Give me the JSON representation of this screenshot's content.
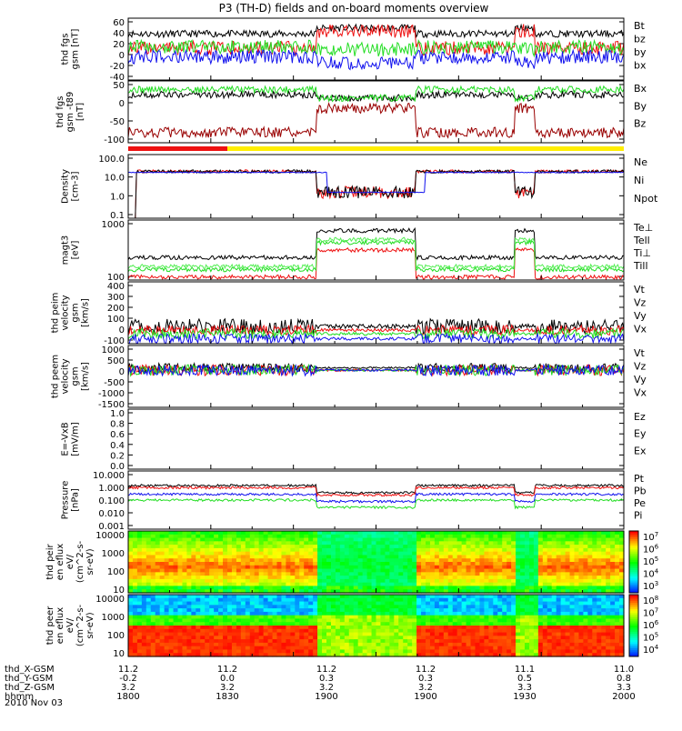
{
  "title": "P3 (TH-D) fields and on-board moments overview",
  "date_label": "2010 Nov 03",
  "bars": {
    "red_fraction": 0.2
  },
  "colors": {
    "black": "#000000",
    "red": "#ee1111",
    "green": "#22dd22",
    "blue": "#1111ee",
    "darkred": "#990000",
    "lightgreen": "#55ee55",
    "yellow": "#ffee00"
  },
  "colorbar_ticks": [
    {
      "label": "10",
      "exp": "7"
    },
    {
      "label": "10",
      "exp": "6"
    },
    {
      "label": "10",
      "exp": "5"
    },
    {
      "label": "10",
      "exp": "4"
    },
    {
      "label": "10",
      "exp": "3"
    }
  ],
  "colorbar2_ticks": [
    {
      "label": "10",
      "exp": "8"
    },
    {
      "label": "10",
      "exp": "7"
    },
    {
      "label": "10",
      "exp": "6"
    },
    {
      "label": "10",
      "exp": "5"
    },
    {
      "label": "10",
      "exp": "4"
    }
  ],
  "x_axis": {
    "rows": [
      {
        "name": "thd_X-GSM",
        "values": [
          "11.2",
          "11.2",
          "11.2",
          "11.2",
          "11.1",
          "11.0"
        ]
      },
      {
        "name": "thd_Y-GSM",
        "values": [
          "-0.2",
          "0.0",
          "0.3",
          "0.3",
          "0.5",
          "0.8"
        ]
      },
      {
        "name": "thd_Z-GSM",
        "values": [
          "3.2",
          "3.2",
          "3.2",
          "3.2",
          "3.3",
          "3.3"
        ]
      },
      {
        "name": "hhmm",
        "values": [
          "1800",
          "1830",
          "1900",
          "1900",
          "1930",
          "2000"
        ]
      }
    ]
  },
  "chart_data": [
    {
      "type": "line",
      "ylabel": "thd fgs gsm [nT]",
      "yticks": [
        "60",
        "40",
        "20",
        "0",
        "-20",
        "-40"
      ],
      "ylim": [
        -45,
        62
      ],
      "legend": [
        {
          "name": "Bt",
          "color": "#000000"
        },
        {
          "name": "bz",
          "color": "#ee1111"
        },
        {
          "name": "by",
          "color": "#22dd22"
        },
        {
          "name": "bx",
          "color": "#1111ee"
        }
      ]
    },
    {
      "type": "line",
      "ylabel": "thd fgs gsm -t89 [nT]",
      "yticks": [
        "50",
        "0",
        "-50",
        "-100"
      ],
      "ylim": [
        -120,
        60
      ],
      "legend": [
        {
          "name": "Bx",
          "color": "#000000"
        },
        {
          "name": "By",
          "color": "#22dd22"
        },
        {
          "name": "Bz",
          "color": "#990000"
        }
      ]
    },
    {
      "type": "line",
      "ylabel": "Density [cm-3]",
      "yticks": [
        "100.0",
        "10.0",
        "1.0",
        "0.1"
      ],
      "log": true,
      "legend": [
        {
          "name": "Ne",
          "color": "#ee1111"
        },
        {
          "name": "Ni",
          "color": "#000000"
        },
        {
          "name": "Npot",
          "color": "#1111ee"
        }
      ]
    },
    {
      "type": "line",
      "ylabel": "magt3 [eV]",
      "yticks": [
        "1000",
        "100"
      ],
      "log": true,
      "legend": [
        {
          "name": "Te⊥",
          "color": "#ee1111"
        },
        {
          "name": "Tell",
          "color": "#000000"
        },
        {
          "name": "Ti⊥",
          "color": "#22dd22"
        },
        {
          "name": "Till",
          "color": "#55ee55"
        }
      ]
    },
    {
      "type": "line",
      "ylabel": "thd peim velocity gsm [km/s]",
      "yticks": [
        "400",
        "300",
        "200",
        "100",
        "0",
        "-100"
      ],
      "ylim": [
        -100,
        400
      ],
      "legend": [
        {
          "name": "Vt",
          "color": "#000000"
        },
        {
          "name": "Vz",
          "color": "#ee1111"
        },
        {
          "name": "Vy",
          "color": "#22dd22"
        },
        {
          "name": "Vx",
          "color": "#1111ee"
        }
      ]
    },
    {
      "type": "line",
      "ylabel": "thd peem velocity gsm [km/s]",
      "yticks": [
        "1000",
        "500",
        "0",
        "-500",
        "-1000",
        "-1500"
      ],
      "ylim": [
        -1500,
        1000
      ],
      "legend": [
        {
          "name": "Vt",
          "color": "#000000"
        },
        {
          "name": "Vz",
          "color": "#ee1111"
        },
        {
          "name": "Vy",
          "color": "#22dd22"
        },
        {
          "name": "Vx",
          "color": "#1111ee"
        }
      ]
    },
    {
      "type": "line",
      "ylabel": "E=-VxB [mV/m]",
      "yticks": [
        "1.0",
        "0.8",
        "0.6",
        "0.4",
        "0.2",
        "0.0"
      ],
      "ylim": [
        0,
        1
      ],
      "legend": [
        {
          "name": "Ez",
          "color": "#ee1111"
        },
        {
          "name": "Ey",
          "color": "#22dd22"
        },
        {
          "name": "Ex",
          "color": "#1111ee"
        }
      ]
    },
    {
      "type": "line",
      "ylabel": "Pressure [nPa]",
      "yticks": [
        "10.000",
        "1.000",
        "0.100",
        "0.010",
        "0.001"
      ],
      "log": true,
      "legend": [
        {
          "name": "Pt",
          "color": "#000000"
        },
        {
          "name": "Pb",
          "color": "#ee1111"
        },
        {
          "name": "Pe",
          "color": "#22dd22"
        },
        {
          "name": "Pi",
          "color": "#1111ee"
        }
      ]
    },
    {
      "type": "heatmap",
      "ylabel": "thd peir en eflux eV/ (cm^2-s- sr-eV)",
      "yticks": [
        "10000",
        "1000",
        "100",
        "10"
      ]
    },
    {
      "type": "heatmap",
      "ylabel": "thd peer en eflux eV/ (cm^2-s- sr-eV)",
      "yticks": [
        "10000",
        "1000",
        "100",
        "10"
      ]
    }
  ]
}
